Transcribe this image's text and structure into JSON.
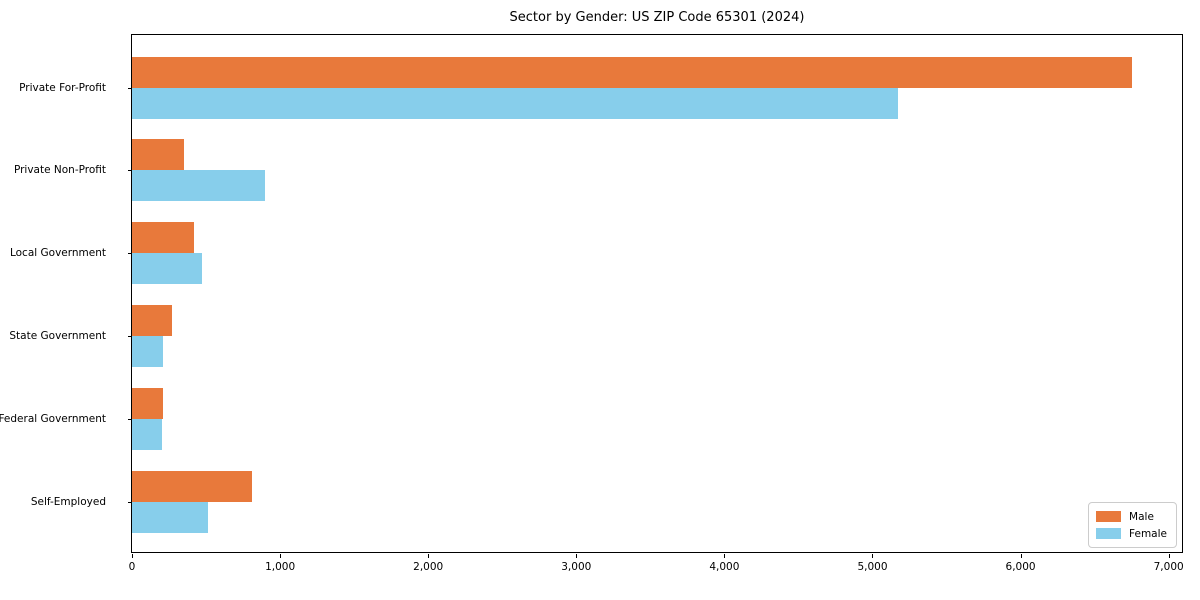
{
  "chart_data": {
    "type": "bar",
    "orientation": "horizontal",
    "title": "Sector by Gender: US ZIP Code 65301 (2024)",
    "categories": [
      "Private For-Profit",
      "Private Non-Profit",
      "Local Government",
      "State Government",
      "Federal Government",
      "Self-Employed"
    ],
    "series": [
      {
        "name": "Male",
        "color": "#e8793b",
        "values": [
          6750,
          350,
          420,
          270,
          210,
          810
        ]
      },
      {
        "name": "Female",
        "color": "#87ceeb",
        "values": [
          5170,
          900,
          470,
          210,
          205,
          510
        ]
      }
    ],
    "xlabel": "",
    "ylabel": "",
    "xlim": [
      0,
      7090
    ],
    "x_tick_values": [
      0,
      1000,
      2000,
      3000,
      4000,
      5000,
      6000,
      7000
    ],
    "x_tick_labels": [
      "0",
      "1,000",
      "2,000",
      "3,000",
      "4,000",
      "5,000",
      "6,000",
      "7,000"
    ],
    "grid": false,
    "legend_position": "lower right",
    "legend_labels": [
      "Male",
      "Female"
    ]
  }
}
